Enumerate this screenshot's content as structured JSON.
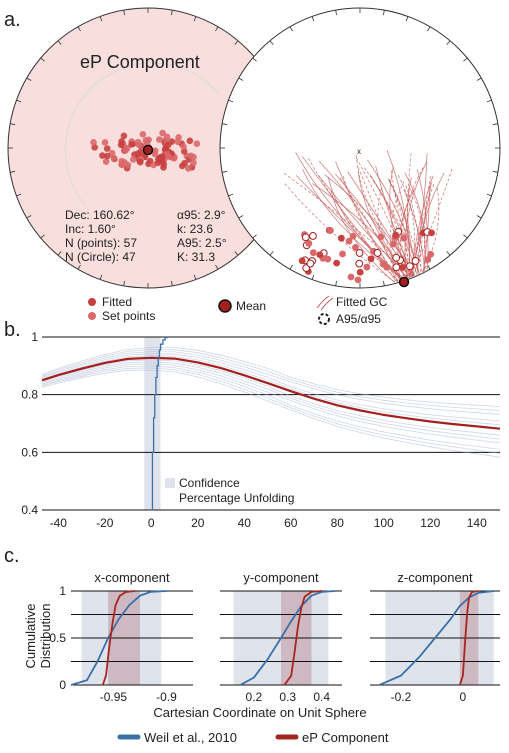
{
  "panel_labels": {
    "a": "a.",
    "b": "b.",
    "c": "c."
  },
  "colors": {
    "fitted": "#c7403f",
    "fitted_light": "#d9686a",
    "mean": "#a3201f",
    "gc": "#c45a5a",
    "blue": "#3b6fa8",
    "ep": "#a3271f",
    "band_blue": "#dfe4ec",
    "band_red": "#c8a9b3"
  },
  "panel_a": {
    "title": "eP Component",
    "stats_left": [
      "Dec: 160.62°",
      "Inc: 1.60°",
      "N (points): 57",
      "N (Circle): 47"
    ],
    "stats_right": [
      "α95: 2.9°",
      "k: 23.6",
      "A95: 2.5°",
      "K: 31.3"
    ],
    "marker": "x",
    "legend": {
      "fitted": "Fitted",
      "set_points": "Set points",
      "mean": "Mean",
      "fitted_gc": "Fitted GC",
      "a95": "A95/α95"
    }
  },
  "chart_data": [
    {
      "type": "line",
      "xlabel": "",
      "ylabel": "",
      "xlim": [
        -47,
        150
      ],
      "ylim": [
        0.4,
        1.0
      ],
      "x_ticks": [
        -40,
        -20,
        0,
        20,
        40,
        60,
        80,
        100,
        120,
        140
      ],
      "y_ticks": [
        0.4,
        0.6,
        0.8,
        1
      ],
      "y_tick_labels": [
        "0.4",
        "0.6",
        "0.8",
        "1"
      ],
      "confidence_band": [
        -3,
        4
      ],
      "legend": [
        "Confidence",
        "Percentage Unfolding"
      ],
      "series": [
        {
          "color": "#a3201f",
          "x": [
            -47,
            -40,
            -30,
            -20,
            -10,
            0,
            10,
            20,
            30,
            40,
            50,
            60,
            70,
            80,
            90,
            100,
            110,
            120,
            130,
            140,
            150
          ],
          "y": [
            0.85,
            0.868,
            0.89,
            0.91,
            0.924,
            0.928,
            0.925,
            0.912,
            0.892,
            0.867,
            0.84,
            0.812,
            0.786,
            0.763,
            0.745,
            0.73,
            0.718,
            0.707,
            0.698,
            0.69,
            0.682
          ]
        },
        {
          "color": "#3b6fa8",
          "x": [
            0,
            0.5,
            1,
            1.5,
            2,
            2.5,
            3,
            3.5,
            4,
            5,
            6,
            7
          ],
          "y": [
            0.4,
            0.6,
            0.72,
            0.8,
            0.86,
            0.9,
            0.93,
            0.955,
            0.975,
            0.99,
            0.998,
            1.0
          ]
        }
      ]
    },
    {
      "type": "line",
      "title": "x-component",
      "xlim": [
        -0.99,
        -0.875
      ],
      "ylim": [
        0,
        1
      ],
      "x_ticks": [
        -0.95,
        -0.9
      ],
      "x_tick_labels": [
        "-0.95",
        "-0.9"
      ],
      "y_ticks": [
        0,
        0.5,
        1
      ],
      "y_tick_labels": [
        "0",
        "0.5",
        "1"
      ],
      "bands": {
        "blue": [
          -0.98,
          -0.905
        ],
        "red": [
          -0.955,
          -0.925
        ]
      },
      "series": [
        {
          "name": "Weil et al., 2010",
          "x": [
            -0.99,
            -0.975,
            -0.965,
            -0.955,
            -0.945,
            -0.935,
            -0.925,
            -0.915,
            -0.9
          ],
          "y": [
            0.0,
            0.05,
            0.25,
            0.5,
            0.7,
            0.85,
            0.95,
            0.99,
            1.0
          ]
        },
        {
          "name": "eP Component",
          "x": [
            -0.96,
            -0.957,
            -0.954,
            -0.951,
            -0.948,
            -0.944,
            -0.938,
            -0.93
          ],
          "y": [
            0.0,
            0.1,
            0.4,
            0.65,
            0.85,
            0.95,
            0.99,
            1.0
          ]
        }
      ]
    },
    {
      "type": "line",
      "title": "y-component",
      "xlim": [
        0.1,
        0.46
      ],
      "ylim": [
        0,
        1
      ],
      "x_ticks": [
        0.2,
        0.3,
        0.4
      ],
      "x_tick_labels": [
        "0.2",
        "0.3",
        "0.4"
      ],
      "bands": {
        "blue": [
          0.14,
          0.42
        ],
        "red": [
          0.28,
          0.37
        ]
      },
      "series": [
        {
          "name": "Weil et al., 2010",
          "x": [
            0.16,
            0.2,
            0.24,
            0.28,
            0.31,
            0.34,
            0.37,
            0.4,
            0.44
          ],
          "y": [
            0.0,
            0.08,
            0.27,
            0.5,
            0.68,
            0.84,
            0.95,
            0.99,
            1.0
          ]
        },
        {
          "name": "eP Component",
          "x": [
            0.29,
            0.31,
            0.32,
            0.33,
            0.34,
            0.35,
            0.37,
            0.4
          ],
          "y": [
            0.0,
            0.1,
            0.35,
            0.62,
            0.82,
            0.94,
            0.99,
            1.0
          ]
        }
      ]
    },
    {
      "type": "line",
      "title": "z-component",
      "xlim": [
        -0.3,
        0.12
      ],
      "ylim": [
        0,
        1
      ],
      "x_ticks": [
        -0.2,
        0
      ],
      "x_tick_labels": [
        "-0.2",
        "0"
      ],
      "bands": {
        "blue": [
          -0.25,
          0.1
        ],
        "red": [
          -0.01,
          0.05
        ]
      },
      "series": [
        {
          "name": "Weil et al., 2010",
          "x": [
            -0.27,
            -0.2,
            -0.14,
            -0.09,
            -0.04,
            -0.01,
            0.02,
            0.05,
            0.1
          ],
          "y": [
            0.0,
            0.1,
            0.3,
            0.5,
            0.7,
            0.84,
            0.93,
            0.98,
            1.0
          ]
        },
        {
          "name": "eP Component",
          "x": [
            -0.01,
            0.0,
            0.005,
            0.01,
            0.015,
            0.02,
            0.03,
            0.05
          ],
          "y": [
            0.0,
            0.1,
            0.35,
            0.6,
            0.8,
            0.93,
            0.99,
            1.0
          ]
        }
      ]
    }
  ],
  "panel_c": {
    "ylabel_lines": [
      "Cumulative",
      "Distribution"
    ],
    "xlabel": "Cartesian Coordinate on Unit Sphere",
    "legend": [
      "Weil et al., 2010",
      "eP Component"
    ]
  }
}
